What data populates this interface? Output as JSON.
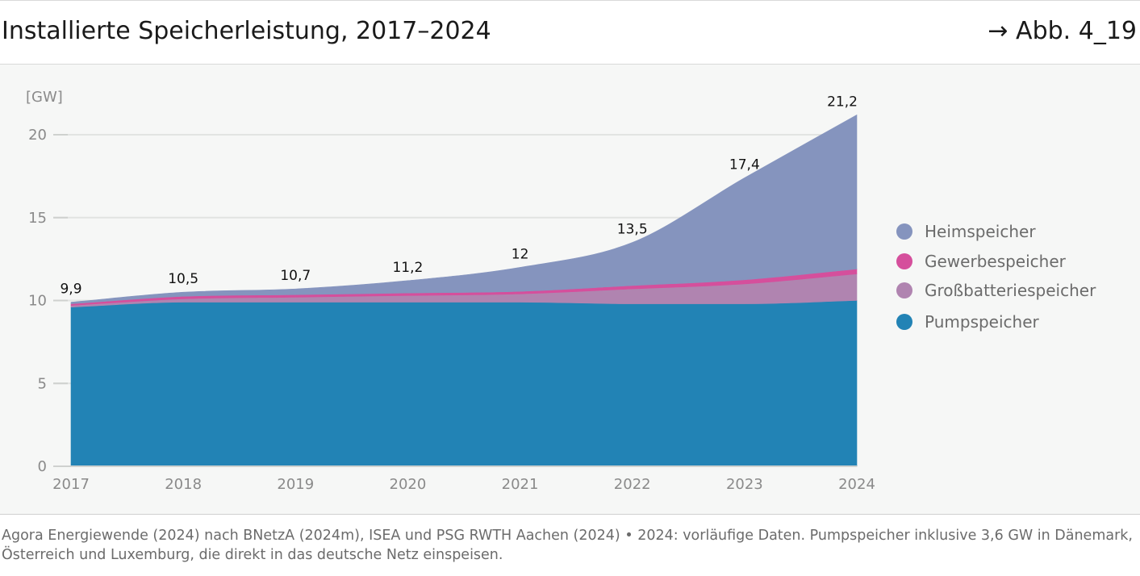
{
  "header": {
    "title": "Installierte Speicherleistung, 2017–2024",
    "figure_ref": "→ Abb. 4_19"
  },
  "footer": {
    "source": "Agora Energiewende (2024) nach BNetzA (2024m), ISEA und PSG RWTH Aachen (2024) • 2024: vorläufige Daten. Pumpspeicher inklusive 3,6 GW in Dänemark, Österreich und Luxemburg, die direkt in das deutsche Netz einspeisen."
  },
  "chart_data": {
    "type": "area",
    "stacked": true,
    "unit_label": "[GW]",
    "x": [
      "2017",
      "2018",
      "2019",
      "2020",
      "2021",
      "2022",
      "2023",
      "2024"
    ],
    "ylim": [
      0,
      22
    ],
    "yticks": [
      0,
      5,
      10,
      15,
      20
    ],
    "grid": true,
    "legend_position": "right",
    "series": [
      {
        "name": "Pumpspeicher",
        "color": "#2283b5",
        "values": [
          9.6,
          9.9,
          9.9,
          9.9,
          9.9,
          9.8,
          9.8,
          10.0
        ]
      },
      {
        "name": "Großbatteriespeicher",
        "color": "#b084b0",
        "values": [
          0.1,
          0.2,
          0.3,
          0.4,
          0.5,
          0.9,
          1.2,
          1.6
        ]
      },
      {
        "name": "Gewerbespeicher",
        "color": "#d54f9c",
        "values": [
          0.1,
          0.15,
          0.15,
          0.15,
          0.15,
          0.2,
          0.25,
          0.3
        ]
      },
      {
        "name": "Heimspeicher",
        "color": "#8594be",
        "values": [
          0.1,
          0.25,
          0.35,
          0.75,
          1.45,
          2.6,
          6.15,
          9.3
        ]
      }
    ],
    "totals": [
      9.9,
      10.5,
      10.7,
      11.2,
      12,
      13.5,
      17.4,
      21.2
    ],
    "total_labels": [
      "9,9",
      "10,5",
      "10,7",
      "11,2",
      "12",
      "13,5",
      "17,4",
      "21,2"
    ],
    "legend_order": [
      "Heimspeicher",
      "Gewerbespeicher",
      "Großbatteriespeicher",
      "Pumpspeicher"
    ]
  }
}
